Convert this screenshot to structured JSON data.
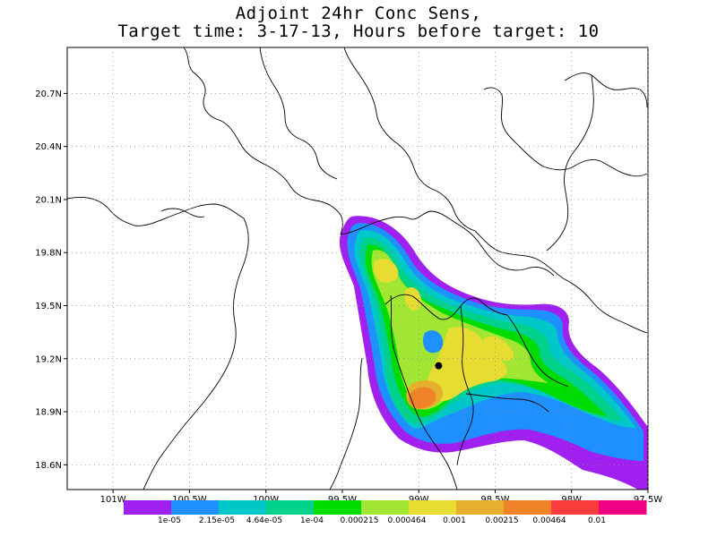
{
  "title": {
    "line1": "Adjoint 24hr Conc Sens,",
    "line2": "Target time: 3-17-13, Hours before target: 10"
  },
  "map": {
    "lat_labels": [
      "20.7N",
      "20.4N",
      "20.1N",
      "19.8N",
      "19.5N",
      "19.2N",
      "18.9N",
      "18.6N"
    ],
    "lat_values": [
      20.7,
      20.4,
      20.1,
      19.8,
      19.5,
      19.2,
      18.9,
      18.6
    ],
    "lon_labels": [
      "101W",
      "100.5W",
      "100W",
      "99.5W",
      "99W",
      "98.5W",
      "98W",
      "97.5W"
    ],
    "lon_values": [
      -101.0,
      -100.5,
      -100.0,
      -99.5,
      -99.0,
      -98.5,
      -98.0,
      -97.5
    ],
    "lon_range": [
      -101.3,
      -97.5
    ],
    "lat_range": [
      18.46,
      20.96
    ],
    "grid": "dotted",
    "target_point": {
      "lon": -98.87,
      "lat": 19.16
    }
  },
  "colorbar": {
    "labels": [
      "1e-05",
      "2.15e-05",
      "4.64e-05",
      "1e-04",
      "0.000215",
      "0.000464",
      "0.001",
      "0.00215",
      "0.00464",
      "0.01"
    ],
    "colors": [
      "#a020f0",
      "#1e90ff",
      "#00c8c8",
      "#00d28c",
      "#00dc00",
      "#a0e632",
      "#e6dc32",
      "#e6af2d",
      "#f08228",
      "#fa3c3c",
      "#f00082"
    ]
  }
}
